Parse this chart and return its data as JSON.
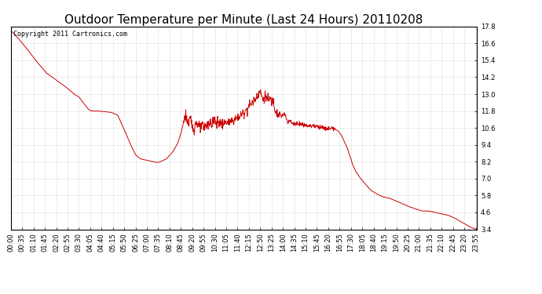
{
  "title": "Outdoor Temperature per Minute (Last 24 Hours) 20110208",
  "copyright_text": "Copyright 2011 Cartronics.com",
  "line_color": "#cc0000",
  "bg_color": "#ffffff",
  "plot_bg_color": "#ffffff",
  "grid_color": "#bbbbbb",
  "ylim": [
    3.4,
    17.8
  ],
  "yticks": [
    3.4,
    4.6,
    5.8,
    7.0,
    8.2,
    9.4,
    10.6,
    11.8,
    13.0,
    14.2,
    15.4,
    16.6,
    17.8
  ],
  "xtick_labels": [
    "00:00",
    "00:35",
    "01:10",
    "01:45",
    "02:20",
    "02:55",
    "03:30",
    "04:05",
    "04:40",
    "05:15",
    "05:50",
    "06:25",
    "07:00",
    "07:35",
    "08:10",
    "08:45",
    "09:20",
    "09:55",
    "10:30",
    "11:05",
    "11:40",
    "12:15",
    "12:50",
    "13:25",
    "14:00",
    "14:35",
    "15:10",
    "15:45",
    "16:20",
    "16:55",
    "17:30",
    "18:05",
    "18:40",
    "19:15",
    "19:50",
    "20:25",
    "21:00",
    "21:35",
    "22:10",
    "22:45",
    "23:20",
    "23:55"
  ],
  "title_fontsize": 11,
  "tick_fontsize": 6,
  "copyright_fontsize": 6,
  "keypoints": [
    [
      0,
      17.5
    ],
    [
      10,
      17.3
    ],
    [
      25,
      16.9
    ],
    [
      50,
      16.2
    ],
    [
      80,
      15.3
    ],
    [
      110,
      14.5
    ],
    [
      140,
      14.0
    ],
    [
      170,
      13.5
    ],
    [
      195,
      13.0
    ],
    [
      210,
      12.8
    ],
    [
      220,
      12.5
    ],
    [
      230,
      12.2
    ],
    [
      240,
      11.9
    ],
    [
      250,
      11.8
    ],
    [
      270,
      11.8
    ],
    [
      290,
      11.75
    ],
    [
      310,
      11.7
    ],
    [
      330,
      11.5
    ],
    [
      340,
      11.0
    ],
    [
      355,
      10.2
    ],
    [
      370,
      9.4
    ],
    [
      385,
      8.7
    ],
    [
      400,
      8.4
    ],
    [
      420,
      8.3
    ],
    [
      450,
      8.15
    ],
    [
      460,
      8.18
    ],
    [
      480,
      8.4
    ],
    [
      500,
      8.9
    ],
    [
      515,
      9.5
    ],
    [
      525,
      10.2
    ],
    [
      535,
      11.2
    ],
    [
      540,
      11.6
    ],
    [
      545,
      11.0
    ],
    [
      550,
      10.8
    ],
    [
      555,
      11.3
    ],
    [
      560,
      10.7
    ],
    [
      565,
      10.5
    ],
    [
      570,
      10.9
    ],
    [
      575,
      11.0
    ],
    [
      580,
      10.7
    ],
    [
      585,
      10.5
    ],
    [
      590,
      10.8
    ],
    [
      595,
      10.6
    ],
    [
      600,
      10.7
    ],
    [
      610,
      10.9
    ],
    [
      615,
      11.0
    ],
    [
      620,
      10.8
    ],
    [
      625,
      11.1
    ],
    [
      630,
      11.2
    ],
    [
      635,
      10.9
    ],
    [
      640,
      11.0
    ],
    [
      645,
      11.0
    ],
    [
      650,
      10.85
    ],
    [
      660,
      10.9
    ],
    [
      665,
      11.1
    ],
    [
      670,
      10.9
    ],
    [
      680,
      11.0
    ],
    [
      690,
      11.2
    ],
    [
      700,
      11.3
    ],
    [
      710,
      11.5
    ],
    [
      720,
      11.7
    ],
    [
      730,
      12.0
    ],
    [
      740,
      12.3
    ],
    [
      750,
      12.5
    ],
    [
      760,
      12.9
    ],
    [
      770,
      13.2
    ],
    [
      775,
      12.8
    ],
    [
      780,
      12.6
    ],
    [
      785,
      12.9
    ],
    [
      790,
      12.7
    ],
    [
      795,
      12.5
    ],
    [
      800,
      12.7
    ],
    [
      805,
      12.4
    ],
    [
      810,
      12.6
    ],
    [
      815,
      12.0
    ],
    [
      820,
      11.8
    ],
    [
      825,
      11.5
    ],
    [
      830,
      11.6
    ],
    [
      835,
      11.4
    ],
    [
      840,
      11.5
    ],
    [
      845,
      11.6
    ],
    [
      850,
      11.3
    ],
    [
      855,
      11.0
    ],
    [
      860,
      11.2
    ],
    [
      865,
      11.0
    ],
    [
      870,
      10.9
    ],
    [
      880,
      10.9
    ],
    [
      890,
      10.9
    ],
    [
      900,
      10.85
    ],
    [
      910,
      10.8
    ],
    [
      920,
      10.75
    ],
    [
      935,
      10.75
    ],
    [
      950,
      10.7
    ],
    [
      960,
      10.65
    ],
    [
      975,
      10.5
    ],
    [
      985,
      10.6
    ],
    [
      1000,
      10.5
    ],
    [
      1010,
      10.4
    ],
    [
      1020,
      10.1
    ],
    [
      1030,
      9.6
    ],
    [
      1040,
      9.1
    ],
    [
      1045,
      8.7
    ],
    [
      1050,
      8.4
    ],
    [
      1055,
      8.0
    ],
    [
      1065,
      7.5
    ],
    [
      1080,
      7.0
    ],
    [
      1095,
      6.6
    ],
    [
      1110,
      6.2
    ],
    [
      1130,
      5.9
    ],
    [
      1150,
      5.7
    ],
    [
      1170,
      5.6
    ],
    [
      1190,
      5.4
    ],
    [
      1210,
      5.2
    ],
    [
      1230,
      5.0
    ],
    [
      1250,
      4.85
    ],
    [
      1270,
      4.7
    ],
    [
      1290,
      4.7
    ],
    [
      1300,
      4.65
    ],
    [
      1310,
      4.6
    ],
    [
      1320,
      4.55
    ],
    [
      1330,
      4.5
    ],
    [
      1340,
      4.45
    ],
    [
      1350,
      4.4
    ],
    [
      1360,
      4.3
    ],
    [
      1370,
      4.2
    ],
    [
      1385,
      4.0
    ],
    [
      1400,
      3.8
    ],
    [
      1415,
      3.6
    ],
    [
      1425,
      3.5
    ],
    [
      1430,
      3.45
    ],
    [
      1439,
      3.4
    ]
  ]
}
